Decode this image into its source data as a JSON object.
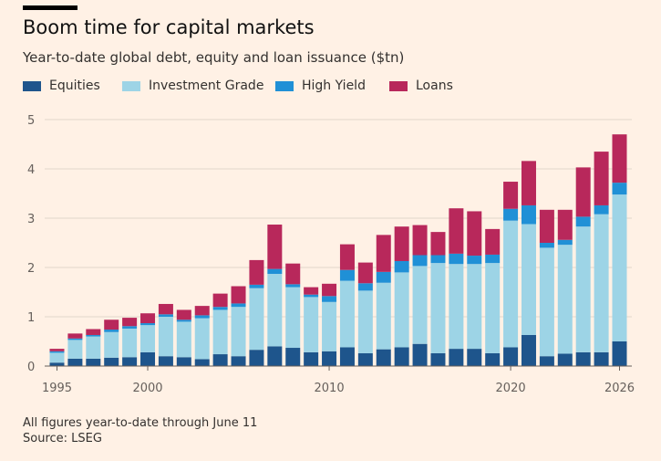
{
  "header": {
    "title": "Boom time for capital markets",
    "subtitle": "Year-to-date global debt, equity and loan issuance ($tn)"
  },
  "footer": {
    "note": "All figures year-to-date through June 11",
    "source": "Source: LSEG"
  },
  "colors": {
    "background": "#FFF1E5",
    "equities": "#1E558C",
    "investment_grade": "#9DD4E6",
    "high_yield": "#2090D6",
    "loans": "#B8285B",
    "grid": "#E0D6CC",
    "baseline": "#66605C"
  },
  "chart_data": {
    "type": "bar",
    "stacked": true,
    "title": "Boom time for capital markets",
    "subtitle": "Year-to-date global debt, equity and loan issuance ($tn)",
    "xlabel": "",
    "ylabel": "",
    "ylim": [
      0,
      5
    ],
    "yticks": [
      0,
      1,
      2,
      3,
      4,
      5
    ],
    "xtick_labels": [
      "1995",
      "2000",
      "2010",
      "2020",
      "2026"
    ],
    "grid": true,
    "legend_position": "top-left",
    "categories": [
      1995,
      1996,
      1997,
      1998,
      1999,
      2000,
      2001,
      2002,
      2003,
      2004,
      2005,
      2006,
      2007,
      2008,
      2009,
      2010,
      2011,
      2012,
      2013,
      2014,
      2015,
      2016,
      2017,
      2018,
      2019,
      2020,
      2021,
      2022,
      2023,
      2024,
      2025,
      2026
    ],
    "series": [
      {
        "name": "Equities",
        "values": [
          0.07,
          0.15,
          0.15,
          0.17,
          0.18,
          0.28,
          0.2,
          0.18,
          0.14,
          0.24,
          0.2,
          0.33,
          0.4,
          0.37,
          0.28,
          0.3,
          0.38,
          0.26,
          0.34,
          0.38,
          0.45,
          0.26,
          0.35,
          0.35,
          0.26,
          0.38,
          0.63,
          0.2,
          0.25,
          0.28,
          0.28,
          0.5
        ]
      },
      {
        "name": "Investment Grade",
        "values": [
          0.2,
          0.38,
          0.45,
          0.52,
          0.58,
          0.55,
          0.8,
          0.72,
          0.83,
          0.9,
          1.0,
          1.25,
          1.47,
          1.23,
          1.12,
          1.0,
          1.35,
          1.27,
          1.35,
          1.52,
          1.58,
          1.83,
          1.72,
          1.72,
          1.83,
          2.57,
          2.25,
          2.2,
          2.21,
          2.55,
          2.8,
          2.98
        ]
      },
      {
        "name": "High Yield",
        "values": [
          0.03,
          0.03,
          0.03,
          0.05,
          0.05,
          0.04,
          0.05,
          0.04,
          0.06,
          0.06,
          0.07,
          0.07,
          0.1,
          0.06,
          0.05,
          0.12,
          0.22,
          0.15,
          0.22,
          0.23,
          0.22,
          0.16,
          0.21,
          0.17,
          0.17,
          0.24,
          0.38,
          0.1,
          0.1,
          0.2,
          0.18,
          0.24
        ]
      },
      {
        "name": "Loans",
        "values": [
          0.05,
          0.1,
          0.12,
          0.2,
          0.17,
          0.2,
          0.21,
          0.2,
          0.19,
          0.27,
          0.35,
          0.5,
          0.9,
          0.42,
          0.15,
          0.25,
          0.52,
          0.42,
          0.75,
          0.7,
          0.61,
          0.47,
          0.92,
          0.9,
          0.52,
          0.55,
          0.9,
          0.67,
          0.61,
          1.0,
          1.09,
          0.98
        ]
      }
    ]
  }
}
